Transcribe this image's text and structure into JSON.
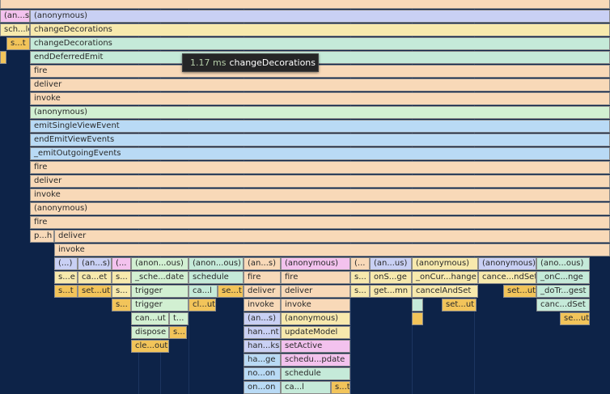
{
  "colors": {
    "background": "#0d2348",
    "gridline": "#1c3560",
    "cell_border": "#8a8a8a",
    "tooltip_bg": "#252526",
    "tooltip_time": "#b5cea8",
    "orange": "#f8d9b8",
    "blue": "#b9daf5",
    "green": "#d2f0d2",
    "mint": "#c5ead9",
    "lavender": "#c9d0f4",
    "pink": "#f3c2ee",
    "yellow": "#f7e9ad",
    "gold": "#f2c45a"
  },
  "tooltip": {
    "duration": "1.17 ms",
    "name": "changeDecorations"
  },
  "rows": [
    [
      {
        "l": 0,
        "w": 754,
        "t": "",
        "c": "orange"
      }
    ],
    [
      {
        "l": 0,
        "w": 37,
        "t": "(an...s)",
        "c": "pink"
      },
      {
        "l": 37,
        "w": 717,
        "t": "(anonymous)",
        "c": "lavender"
      }
    ],
    [
      {
        "l": 0,
        "w": 37,
        "t": "sch...le",
        "c": "yellow"
      },
      {
        "l": 37,
        "w": 717,
        "t": "changeDecorations",
        "c": "yellow"
      }
    ],
    [
      {
        "l": 8,
        "w": 29,
        "t": "s...t",
        "c": "gold"
      },
      {
        "l": 37,
        "w": 717,
        "t": "changeDecorations",
        "c": "mint"
      }
    ],
    [
      {
        "l": 0,
        "w": 8,
        "t": "",
        "c": "gold"
      },
      {
        "l": 37,
        "w": 717,
        "t": "endDeferredEmit",
        "c": "mint"
      }
    ],
    [
      {
        "l": 37,
        "w": 717,
        "t": "fire",
        "c": "orange"
      }
    ],
    [
      {
        "l": 37,
        "w": 717,
        "t": "deliver",
        "c": "orange"
      }
    ],
    [
      {
        "l": 37,
        "w": 717,
        "t": "invoke",
        "c": "orange"
      }
    ],
    [
      {
        "l": 37,
        "w": 717,
        "t": "(anonymous)",
        "c": "green"
      }
    ],
    [
      {
        "l": 37,
        "w": 717,
        "t": "emitSingleViewEvent",
        "c": "blue"
      }
    ],
    [
      {
        "l": 37,
        "w": 717,
        "t": "endEmitViewEvents",
        "c": "blue"
      }
    ],
    [
      {
        "l": 37,
        "w": 717,
        "t": "_emitOutgoingEvents",
        "c": "blue"
      }
    ],
    [
      {
        "l": 37,
        "w": 717,
        "t": "fire",
        "c": "orange"
      }
    ],
    [
      {
        "l": 37,
        "w": 717,
        "t": "deliver",
        "c": "orange"
      }
    ],
    [
      {
        "l": 37,
        "w": 717,
        "t": "invoke",
        "c": "orange"
      }
    ],
    [
      {
        "l": 37,
        "w": 717,
        "t": "(anonymous)",
        "c": "orange"
      }
    ],
    [
      {
        "l": 37,
        "w": 717,
        "t": "fire",
        "c": "orange"
      }
    ],
    [
      {
        "l": 37,
        "w": 30,
        "t": "p...h",
        "c": "orange"
      },
      {
        "l": 67,
        "w": 687,
        "t": "deliver",
        "c": "orange"
      }
    ],
    [
      {
        "l": 67,
        "w": 687,
        "t": "invoke",
        "c": "orange"
      }
    ],
    [
      {
        "l": 67,
        "w": 29,
        "t": "(...)",
        "c": "lavender"
      },
      {
        "l": 96,
        "w": 42,
        "t": "(an...s)",
        "c": "lavender"
      },
      {
        "l": 138,
        "w": 24,
        "t": "(...",
        "c": "pink"
      },
      {
        "l": 162,
        "w": 71,
        "t": "(anon...ous)",
        "c": "green"
      },
      {
        "l": 233,
        "w": 68,
        "t": "(anon...ous)",
        "c": "mint"
      },
      {
        "l": 301,
        "w": 46,
        "t": "(an...s)",
        "c": "orange"
      },
      {
        "l": 347,
        "w": 86,
        "t": "(anonymous)",
        "c": "pink"
      },
      {
        "l": 433,
        "w": 24,
        "t": "(...",
        "c": "orange"
      },
      {
        "l": 457,
        "w": 52,
        "t": "(an...us)",
        "c": "lavender"
      },
      {
        "l": 509,
        "w": 82,
        "t": "(anonymous)",
        "c": "yellow"
      },
      {
        "l": 591,
        "w": 72,
        "t": "(anonymous)",
        "c": "lavender"
      },
      {
        "l": 663,
        "w": 66,
        "t": "(ano...ous)",
        "c": "mint"
      }
    ],
    [
      {
        "l": 67,
        "w": 29,
        "t": "s...e",
        "c": "yellow"
      },
      {
        "l": 96,
        "w": 42,
        "t": "ca...et",
        "c": "yellow"
      },
      {
        "l": 138,
        "w": 24,
        "t": "s...",
        "c": "yellow"
      },
      {
        "l": 162,
        "w": 71,
        "t": "_sche...date",
        "c": "green"
      },
      {
        "l": 233,
        "w": 68,
        "t": "schedule",
        "c": "mint"
      },
      {
        "l": 301,
        "w": 46,
        "t": "fire",
        "c": "orange"
      },
      {
        "l": 347,
        "w": 86,
        "t": "fire",
        "c": "orange"
      },
      {
        "l": 433,
        "w": 24,
        "t": "s...",
        "c": "yellow"
      },
      {
        "l": 457,
        "w": 52,
        "t": "onS...ge",
        "c": "yellow"
      },
      {
        "l": 509,
        "w": 82,
        "t": "_onCur...hange",
        "c": "yellow"
      },
      {
        "l": 591,
        "w": 72,
        "t": "cance...ndSet",
        "c": "yellow"
      },
      {
        "l": 663,
        "w": 66,
        "t": "_onC...nge",
        "c": "mint"
      }
    ],
    [
      {
        "l": 67,
        "w": 29,
        "t": "s...t",
        "c": "gold"
      },
      {
        "l": 96,
        "w": 42,
        "t": "set...ut",
        "c": "gold"
      },
      {
        "l": 138,
        "w": 24,
        "t": "s...",
        "c": "yellow"
      },
      {
        "l": 162,
        "w": 71,
        "t": "trigger",
        "c": "green"
      },
      {
        "l": 233,
        "w": 36,
        "t": "ca...l",
        "c": "mint"
      },
      {
        "l": 269,
        "w": 32,
        "t": "se...t",
        "c": "gold"
      },
      {
        "l": 301,
        "w": 46,
        "t": "deliver",
        "c": "orange"
      },
      {
        "l": 347,
        "w": 86,
        "t": "deliver",
        "c": "orange"
      },
      {
        "l": 433,
        "w": 24,
        "t": "s...",
        "c": "yellow"
      },
      {
        "l": 457,
        "w": 52,
        "t": "get...mn",
        "c": "yellow"
      },
      {
        "l": 509,
        "w": 82,
        "t": "cancelAndSet",
        "c": "yellow"
      },
      {
        "l": 622,
        "w": 41,
        "t": "set...ut",
        "c": "gold"
      },
      {
        "l": 663,
        "w": 66,
        "t": "_doTr...gest",
        "c": "mint"
      }
    ],
    [
      {
        "l": 138,
        "w": 24,
        "t": "s...",
        "c": "gold"
      },
      {
        "l": 162,
        "w": 71,
        "t": "trigger",
        "c": "green"
      },
      {
        "l": 233,
        "w": 34,
        "t": "cl...ut",
        "c": "gold"
      },
      {
        "l": 301,
        "w": 46,
        "t": "invoke",
        "c": "orange"
      },
      {
        "l": 347,
        "w": 86,
        "t": "invoke",
        "c": "orange"
      },
      {
        "l": 509,
        "w": 14,
        "t": "",
        "c": "mint"
      },
      {
        "l": 546,
        "w": 43,
        "t": "set...ut",
        "c": "gold"
      },
      {
        "l": 663,
        "w": 66,
        "t": "canc...dSet",
        "c": "mint"
      }
    ],
    [
      {
        "l": 162,
        "w": 47,
        "t": "can...ut",
        "c": "green"
      },
      {
        "l": 209,
        "w": 24,
        "t": "t...",
        "c": "green"
      },
      {
        "l": 301,
        "w": 46,
        "t": "(an...s)",
        "c": "lavender"
      },
      {
        "l": 347,
        "w": 86,
        "t": "(anonymous)",
        "c": "yellow"
      },
      {
        "l": 509,
        "w": 14,
        "t": "",
        "c": "gold"
      },
      {
        "l": 692,
        "w": 37,
        "t": "se...ut",
        "c": "gold"
      }
    ],
    [
      {
        "l": 162,
        "w": 47,
        "t": "dispose",
        "c": "green"
      },
      {
        "l": 209,
        "w": 22,
        "t": "s...",
        "c": "gold"
      },
      {
        "l": 301,
        "w": 46,
        "t": "han...nt",
        "c": "lavender"
      },
      {
        "l": 347,
        "w": 86,
        "t": "updateModel",
        "c": "yellow"
      }
    ],
    [
      {
        "l": 162,
        "w": 47,
        "t": "cle...out",
        "c": "gold"
      },
      {
        "l": 301,
        "w": 46,
        "t": "han...ks",
        "c": "lavender"
      },
      {
        "l": 347,
        "w": 86,
        "t": "setActive",
        "c": "pink"
      }
    ],
    [
      {
        "l": 301,
        "w": 46,
        "t": "ha...ge",
        "c": "blue"
      },
      {
        "l": 347,
        "w": 86,
        "t": "schedu...pdate",
        "c": "pink"
      }
    ],
    [
      {
        "l": 301,
        "w": 46,
        "t": "no...on",
        "c": "blue"
      },
      {
        "l": 347,
        "w": 86,
        "t": "schedule",
        "c": "mint"
      }
    ],
    [
      {
        "l": 301,
        "w": 46,
        "t": "on...on",
        "c": "blue"
      },
      {
        "l": 347,
        "w": 62,
        "t": "ca...l",
        "c": "mint"
      },
      {
        "l": 409,
        "w": 24,
        "t": "s...t",
        "c": "gold"
      }
    ]
  ]
}
